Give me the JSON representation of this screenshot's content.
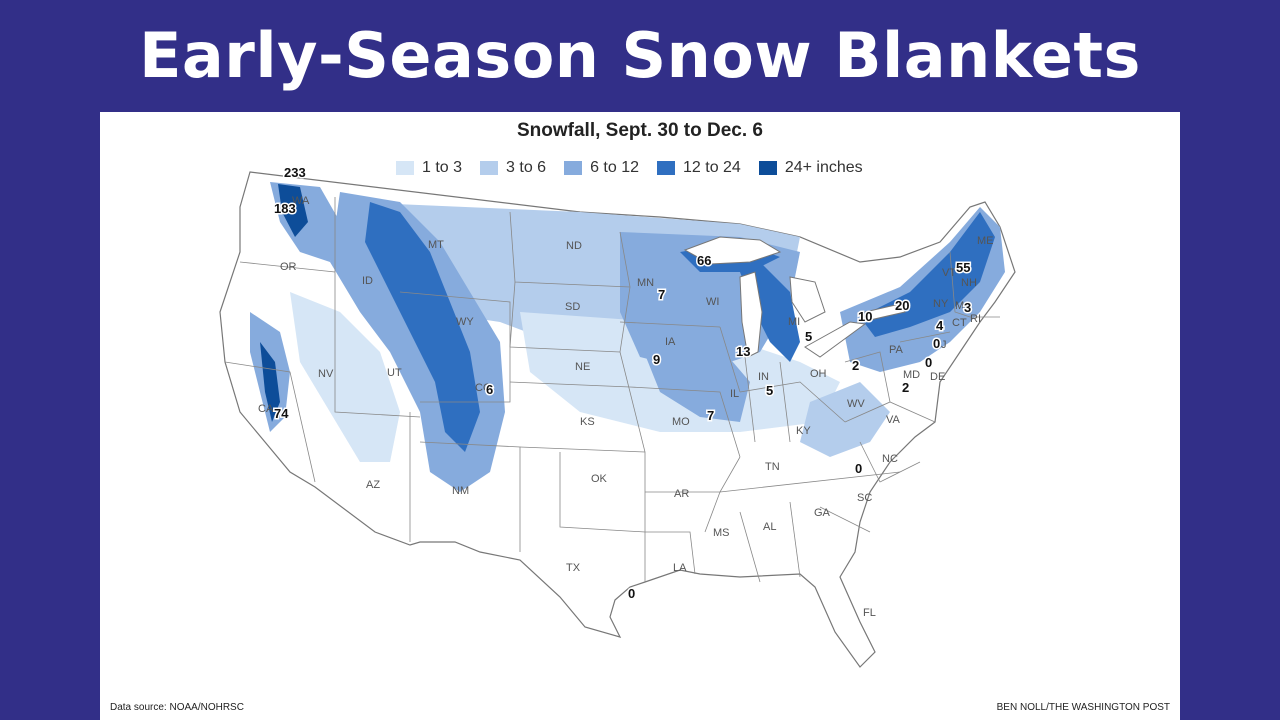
{
  "header": {
    "title": "Early-Season Snow Blankets"
  },
  "map": {
    "title": "Snowfall, Sept. 30 to Dec. 6",
    "legend": [
      {
        "label": "1 to 3",
        "color": "#d6e6f6"
      },
      {
        "label": "3 to 6",
        "color": "#b4cdec"
      },
      {
        "label": "6 to 12",
        "color": "#86abdd"
      },
      {
        "label": "12 to 24",
        "color": "#2f6fc0"
      },
      {
        "label": "24+ inches",
        "color": "#0d4d99"
      }
    ],
    "states": [
      "WA",
      "OR",
      "CA",
      "ID",
      "NV",
      "MT",
      "WY",
      "UT",
      "AZ",
      "CO",
      "NM",
      "ND",
      "SD",
      "NE",
      "KS",
      "OK",
      "TX",
      "MN",
      "IA",
      "MO",
      "AR",
      "LA",
      "WI",
      "IL",
      "MI",
      "IN",
      "OH",
      "KY",
      "TN",
      "MS",
      "AL",
      "GA",
      "FL",
      "SC",
      "NC",
      "VA",
      "WV",
      "PA",
      "NY",
      "VT",
      "NH",
      "ME",
      "MA",
      "CT",
      "RI",
      "NJ",
      "DE",
      "MD"
    ],
    "snowfall_totals": [
      "233",
      "183",
      "74",
      "6",
      "9",
      "7",
      "66",
      "13",
      "7",
      "5",
      "5",
      "10",
      "20",
      "55",
      "3",
      "4",
      "0",
      "0",
      "2",
      "2",
      "0",
      "0"
    ],
    "source": "Data source: NOAA/NOHRSC",
    "credit": "BEN NOLL/THE WASHINGTON POST"
  }
}
